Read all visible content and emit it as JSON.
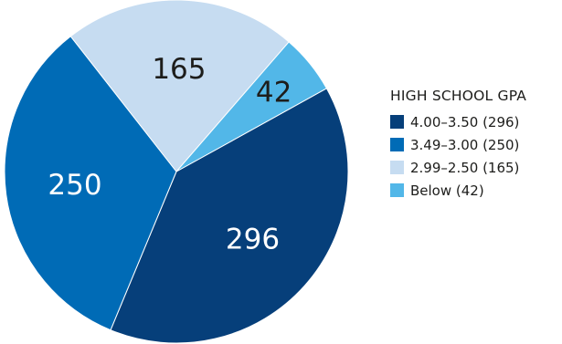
{
  "chart_data": {
    "type": "pie",
    "title": "",
    "legend_title": "HIGH SCHOOL GPA",
    "legend_position": "right",
    "start": "top-right, clockwise",
    "slices": [
      {
        "label": "4.00–3.50 (296)",
        "value": 296,
        "display": "296",
        "color": "#063f7a",
        "text_color": "#ffffff"
      },
      {
        "label": "3.49–3.00 (250)",
        "value": 250,
        "display": "250",
        "color": "#006bb6",
        "text_color": "#ffffff"
      },
      {
        "label": "2.99–2.50 (165)",
        "value": 165,
        "display": "165",
        "color": "#c6dcf1",
        "text_color": "#1d1d1b"
      },
      {
        "label": "Below (42)",
        "value": 42,
        "display": "42",
        "color": "#52b7e8",
        "text_color": "#1d1d1b"
      }
    ]
  }
}
